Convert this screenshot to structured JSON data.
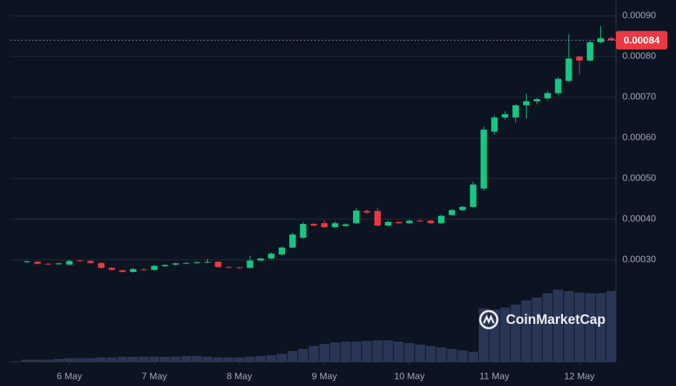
{
  "chart_data": {
    "type": "candlestick",
    "x": [
      5.5,
      5.625,
      5.75,
      5.875,
      6,
      6.125,
      6.25,
      6.375,
      6.5,
      6.625,
      6.75,
      6.875,
      7,
      7.125,
      7.25,
      7.375,
      7.5,
      7.625,
      7.75,
      7.875,
      8,
      8.125,
      8.25,
      8.375,
      8.5,
      8.625,
      8.75,
      8.875,
      9,
      9.125,
      9.25,
      9.375,
      9.5,
      9.625,
      9.75,
      9.875,
      10,
      10.125,
      10.25,
      10.375,
      10.5,
      10.625,
      10.75,
      10.875,
      11,
      11.125,
      11.25,
      11.375,
      11.5,
      11.625,
      11.75,
      11.875,
      12,
      12.125,
      12.25,
      12.375
    ],
    "open": [
      0.000294,
      0.000295,
      0.00029,
      0.000289,
      0.000288,
      0.000298,
      0.000297,
      0.000292,
      0.00028,
      0.000274,
      0.00027,
      0.000276,
      0.000275,
      0.000284,
      0.000288,
      0.000291,
      0.000292,
      0.000294,
      0.000295,
      0.000282,
      0.000281,
      0.00028,
      0.000298,
      0.000303,
      0.000313,
      0.00033,
      0.000354,
      0.000388,
      0.00039,
      0.00038,
      0.000383,
      0.00039,
      0.00042,
      0.00042,
      0.000384,
      0.000393,
      0.00039,
      0.000396,
      0.000396,
      0.00039,
      0.00041,
      0.000422,
      0.00043,
      0.000475,
      0.000615,
      0.00065,
      0.00065,
      0.00068,
      0.00069,
      0.000697,
      0.00071,
      0.00074,
      0.0008,
      0.00079,
      0.000835,
      0.000845
    ],
    "high": [
      0.000298,
      0.000297,
      0.000292,
      0.000293,
      0.0003,
      0.0003,
      0.000299,
      0.000294,
      0.000282,
      0.000276,
      0.00028,
      0.000279,
      0.000287,
      0.000289,
      0.000293,
      0.000294,
      0.000296,
      0.000302,
      0.000297,
      0.000284,
      0.000283,
      0.00031,
      0.000305,
      0.000318,
      0.000333,
      0.000366,
      0.000392,
      0.000391,
      0.000398,
      0.000394,
      0.00039,
      0.000427,
      0.000424,
      0.000428,
      0.000396,
      0.000395,
      0.000399,
      0.000399,
      0.000398,
      0.000411,
      0.000425,
      0.000433,
      0.000492,
      0.000628,
      0.000655,
      0.000665,
      0.000682,
      0.000708,
      0.000698,
      0.000715,
      0.00075,
      0.000855,
      0.000797,
      0.000838,
      0.000875,
      0.000848
    ],
    "low": [
      0.000292,
      0.000288,
      0.000287,
      0.000287,
      0.000286,
      0.000295,
      0.00029,
      0.000278,
      0.000273,
      0.000268,
      0.000268,
      0.000273,
      0.000273,
      0.000282,
      0.000286,
      0.000289,
      0.00029,
      0.000292,
      0.00028,
      0.000279,
      0.000278,
      0.000278,
      0.000296,
      0.000301,
      0.00031,
      0.000328,
      0.000352,
      0.000382,
      0.000378,
      0.000378,
      0.000381,
      0.000388,
      0.000412,
      0.000382,
      0.000382,
      0.000388,
      0.000388,
      0.000393,
      0.000388,
      0.000388,
      0.000408,
      0.00042,
      0.000428,
      0.00047,
      0.000608,
      0.000645,
      0.000638,
      0.000648,
      0.000682,
      0.000692,
      0.000705,
      0.000738,
      0.000756,
      0.000788,
      0.000832,
      0.000838
    ],
    "close": [
      0.000296,
      0.00029,
      0.000289,
      0.000291,
      0.000297,
      0.000297,
      0.000292,
      0.00028,
      0.000275,
      0.00027,
      0.000277,
      0.000275,
      0.000285,
      0.000287,
      0.000291,
      0.000292,
      0.000294,
      0.000295,
      0.000282,
      0.000281,
      0.00028,
      0.000298,
      0.000303,
      0.000315,
      0.00033,
      0.000362,
      0.000388,
      0.000384,
      0.00038,
      0.00039,
      0.000387,
      0.000421,
      0.000416,
      0.000384,
      0.000393,
      0.00039,
      0.000396,
      0.000395,
      0.00039,
      0.000408,
      0.000422,
      0.00043,
      0.000485,
      0.00062,
      0.00065,
      0.000658,
      0.00068,
      0.00069,
      0.000695,
      0.00071,
      0.000745,
      0.000795,
      0.00079,
      0.000835,
      0.000845,
      0.00084
    ],
    "volume": [
      3,
      3,
      3,
      4,
      5,
      5,
      5,
      6,
      6,
      7,
      7,
      7,
      7,
      7,
      7,
      8,
      8,
      7,
      6,
      6,
      6,
      7,
      8,
      9,
      11,
      15,
      18,
      22,
      25,
      27,
      28,
      28,
      29,
      30,
      30,
      28,
      26,
      24,
      22,
      20,
      18,
      16,
      14,
      75,
      73,
      76,
      80,
      86,
      90,
      96,
      101,
      99,
      97,
      96,
      96,
      99
    ],
    "volume_lim": [
      0,
      110
    ],
    "xlim": [
      5.31,
      12.43
    ],
    "xticks": [
      {
        "value": 6,
        "label": "6 May"
      },
      {
        "value": 7,
        "label": "7 May"
      },
      {
        "value": 8,
        "label": "8 May"
      },
      {
        "value": 9,
        "label": "9 May"
      },
      {
        "value": 10,
        "label": "10 May"
      },
      {
        "value": 11,
        "label": "11 May"
      },
      {
        "value": 12,
        "label": "12 May"
      }
    ],
    "ylim": [
      4.9e-05,
      0.000939
    ],
    "yticks": [
      {
        "value": 0.0003,
        "label": "0.00030"
      },
      {
        "value": 0.0004,
        "label": "0.00040"
      },
      {
        "value": 0.0005,
        "label": "0.00050"
      },
      {
        "value": 0.0006,
        "label": "0.00060"
      },
      {
        "value": 0.0007,
        "label": "0.00070"
      },
      {
        "value": 0.0008,
        "label": "0.00080"
      },
      {
        "value": 0.0009,
        "label": "0.00090"
      }
    ],
    "last_price": 0.00084,
    "grid": true,
    "colors": {
      "up": "#16c784",
      "down": "#ea3943",
      "volume": "#2a3656"
    },
    "watermark": "CoinMarketCap"
  }
}
